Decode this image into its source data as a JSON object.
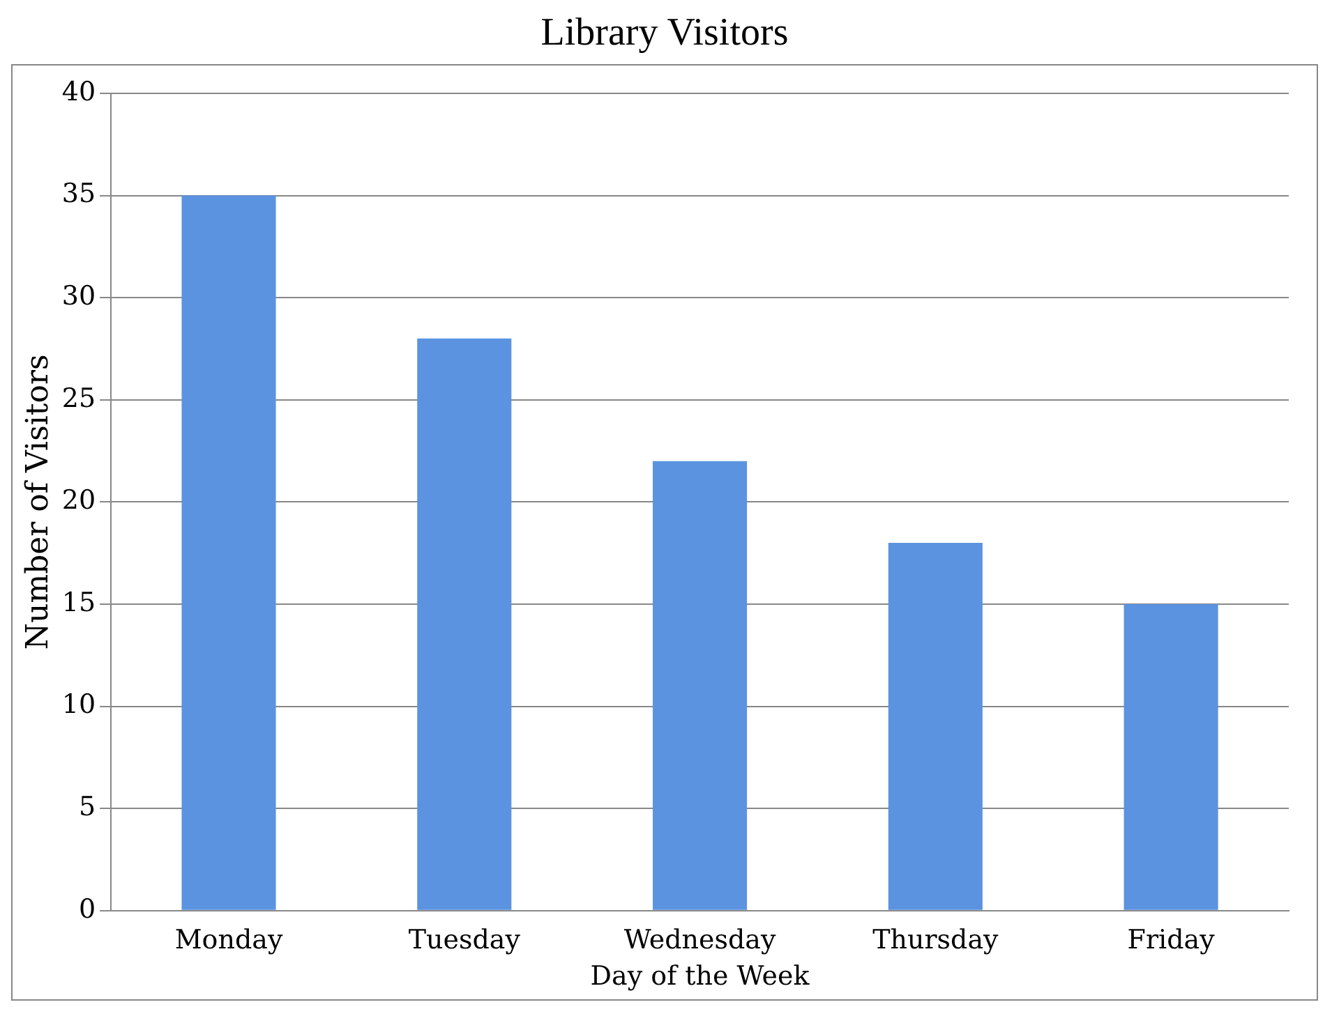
{
  "chart_data": {
    "type": "bar",
    "title": "Library Visitors",
    "xlabel": "Day of the Week",
    "ylabel": "Number of Visitors",
    "categories": [
      "Monday",
      "Tuesday",
      "Wednesday",
      "Thursday",
      "Friday"
    ],
    "values": [
      35,
      28,
      22,
      18,
      15
    ],
    "color": "#5b93e0",
    "ylim": [
      0,
      40
    ],
    "yticks": [
      0,
      5,
      10,
      15,
      20,
      25,
      30,
      35,
      40
    ],
    "grid": "y",
    "legend": false
  }
}
